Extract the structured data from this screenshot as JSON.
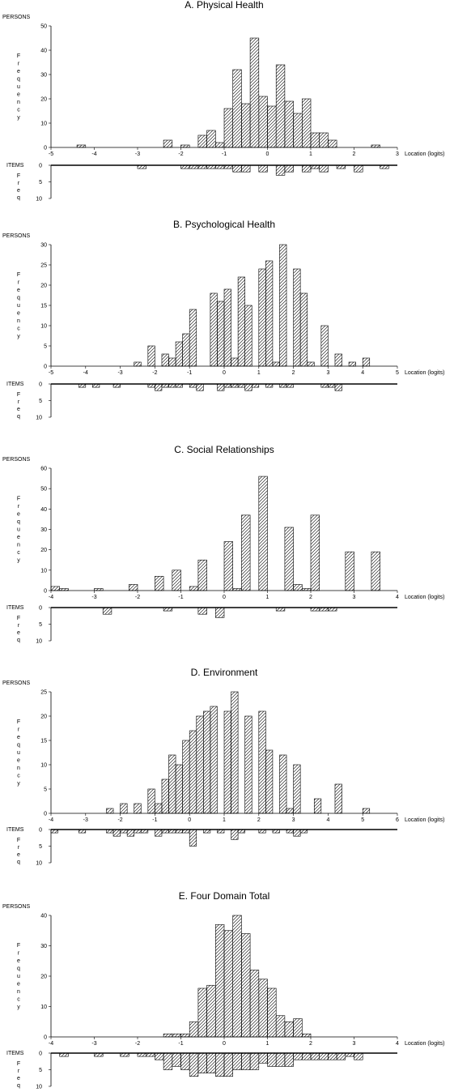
{
  "chart_data": [
    {
      "type": "bar",
      "title": "A. Physical Health",
      "persons_label": "PERSONS",
      "items_label": "ITEMS",
      "ylabel": "Frequency",
      "items_ylabel": "Freq",
      "xlabel": "Location (logits)",
      "xlim": [
        -5,
        3
      ],
      "x_ticks": [
        -5,
        -4,
        -3,
        -2,
        -1,
        0,
        1,
        2,
        3
      ],
      "ylim": [
        0,
        50
      ],
      "y_ticks": [
        0,
        10,
        20,
        30,
        40,
        50
      ],
      "items_ylim": [
        0,
        10
      ],
      "items_y_ticks": [
        0,
        5,
        10
      ],
      "bar_width": 0.2,
      "persons": {
        "x": [
          -4.3,
          -2.3,
          -1.9,
          -1.5,
          -1.3,
          -1.1,
          -0.9,
          -0.7,
          -0.5,
          -0.3,
          -0.1,
          0.1,
          0.3,
          0.5,
          0.7,
          0.9,
          1.1,
          1.3,
          1.5,
          2.5
        ],
        "values": [
          1,
          3,
          1,
          5,
          7,
          2,
          16,
          32,
          18,
          45,
          21,
          17,
          34,
          19,
          14,
          20,
          6,
          6,
          3,
          1
        ]
      },
      "items": {
        "x": [
          -2.9,
          -1.9,
          -1.7,
          -1.5,
          -1.3,
          -1.1,
          -0.9,
          -0.7,
          -0.5,
          -0.1,
          0.3,
          0.5,
          0.9,
          1.1,
          1.3,
          1.7,
          2.1,
          2.7
        ],
        "values": [
          1,
          1,
          1,
          1,
          1,
          1,
          1,
          2,
          2,
          2,
          3,
          2,
          2,
          1,
          2,
          1,
          2,
          1
        ]
      }
    },
    {
      "type": "bar",
      "title": "B. Psychological Health",
      "persons_label": "PERSONS",
      "items_label": "ITEMS",
      "ylabel": "Frequency",
      "items_ylabel": "Freq",
      "xlabel": "Location (logits)",
      "xlim": [
        -5,
        5
      ],
      "x_ticks": [
        -5,
        -4,
        -3,
        -2,
        -1,
        0,
        1,
        2,
        3,
        4,
        5
      ],
      "ylim": [
        0,
        30
      ],
      "y_ticks": [
        0,
        5,
        10,
        15,
        20,
        25,
        30
      ],
      "items_ylim": [
        0,
        10
      ],
      "items_y_ticks": [
        0,
        5,
        10
      ],
      "bar_width": 0.2,
      "persons": {
        "x": [
          -2.5,
          -2.1,
          -1.7,
          -1.5,
          -1.3,
          -1.1,
          -0.9,
          -0.7,
          -0.3,
          -0.1,
          0.1,
          0.3,
          0.5,
          0.7,
          1.1,
          1.3,
          1.5,
          1.7,
          1.9,
          2.1,
          2.3,
          2.5,
          2.9,
          3.3,
          3.7,
          4.1
        ],
        "values": [
          1,
          5,
          3,
          2,
          6,
          8,
          14,
          0,
          18,
          16,
          19,
          2,
          22,
          15,
          24,
          26,
          1,
          30,
          0,
          24,
          18,
          1,
          10,
          3,
          1,
          2
        ]
      },
      "items": {
        "x": [
          -4.1,
          -3.7,
          -3.1,
          -2.1,
          -1.9,
          -1.7,
          -1.5,
          -1.3,
          -0.9,
          -0.7,
          -0.1,
          0.1,
          0.3,
          0.5,
          0.7,
          0.9,
          1.3,
          1.7,
          1.9,
          2.9,
          3.1,
          3.3
        ],
        "values": [
          1,
          1,
          1,
          1,
          2,
          1,
          1,
          1,
          1,
          2,
          2,
          1,
          1,
          1,
          2,
          1,
          1,
          1,
          1,
          1,
          1,
          2
        ]
      }
    },
    {
      "type": "bar",
      "title": "C. Social Relationships",
      "persons_label": "PERSONS",
      "items_label": "ITEMS",
      "ylabel": "Frequency",
      "items_ylabel": "Freq",
      "xlabel": "Location (logits)",
      "xlim": [
        -4,
        4
      ],
      "x_ticks": [
        -4,
        -3,
        -2,
        -1,
        0,
        1,
        2,
        3,
        4
      ],
      "ylim": [
        0,
        60
      ],
      "y_ticks": [
        0,
        10,
        20,
        30,
        40,
        50,
        60
      ],
      "items_ylim": [
        0,
        10
      ],
      "items_y_ticks": [
        0,
        5,
        10
      ],
      "bar_width": 0.2,
      "persons": {
        "x": [
          -3.9,
          -3.7,
          -2.9,
          -2.1,
          -1.5,
          -1.1,
          -0.7,
          -0.5,
          0.1,
          0.3,
          0.5,
          0.9,
          1.5,
          1.7,
          1.9,
          2.1,
          2.9,
          3.5
        ],
        "values": [
          2,
          1,
          1,
          3,
          7,
          10,
          2,
          15,
          24,
          1,
          37,
          56,
          31,
          3,
          1,
          37,
          19,
          19
        ]
      },
      "items": {
        "x": [
          -2.7,
          -1.3,
          -0.5,
          -0.1,
          1.3,
          2.1,
          2.3,
          2.5
        ],
        "values": [
          2,
          1,
          2,
          3,
          1,
          1,
          1,
          1
        ]
      }
    },
    {
      "type": "bar",
      "title": "D. Environment",
      "persons_label": "PERSONS",
      "items_label": "ITEMS",
      "ylabel": "Frequency",
      "items_ylabel": "Freq",
      "xlabel": "Location (logits)",
      "xlim": [
        -4,
        6
      ],
      "x_ticks": [
        -4,
        -3,
        -2,
        -1,
        0,
        1,
        2,
        3,
        4,
        5,
        6
      ],
      "ylim": [
        0,
        25
      ],
      "y_ticks": [
        0,
        5,
        10,
        15,
        20,
        25
      ],
      "items_ylim": [
        0,
        10
      ],
      "items_y_ticks": [
        0,
        5,
        10
      ],
      "bar_width": 0.2,
      "persons": {
        "x": [
          -2.3,
          -1.9,
          -1.5,
          -1.1,
          -0.9,
          -0.7,
          -0.5,
          -0.3,
          -0.1,
          0.1,
          0.3,
          0.5,
          0.7,
          0.9,
          1.1,
          1.3,
          1.5,
          1.7,
          2.1,
          2.3,
          2.7,
          2.9,
          3.1,
          3.7,
          4.3,
          5.1
        ],
        "values": [
          1,
          2,
          2,
          5,
          2,
          7,
          12,
          10,
          15,
          17,
          20,
          21,
          22,
          0,
          21,
          25,
          0,
          20,
          21,
          13,
          12,
          1,
          10,
          3,
          6,
          1
        ]
      },
      "items": {
        "x": [
          -3.9,
          -3.1,
          -2.3,
          -2.1,
          -1.9,
          -1.7,
          -1.5,
          -1.3,
          -0.9,
          -0.7,
          -0.5,
          -0.3,
          -0.1,
          0.1,
          0.5,
          0.9,
          1.3,
          1.5,
          2.1,
          2.5,
          2.9,
          3.1,
          3.3
        ],
        "values": [
          1,
          1,
          1,
          2,
          1,
          2,
          1,
          1,
          2,
          1,
          1,
          1,
          1,
          5,
          1,
          1,
          3,
          1,
          1,
          1,
          1,
          2,
          1
        ]
      }
    },
    {
      "type": "bar",
      "title": "E. Four Domain Total",
      "persons_label": "PERSONS",
      "items_label": "ITEMS",
      "ylabel": "Frequency",
      "items_ylabel": "Freq",
      "xlabel": "Location (logits)",
      "xlim": [
        -4,
        4
      ],
      "x_ticks": [
        -4,
        -3,
        -2,
        -1,
        0,
        1,
        2,
        3,
        4
      ],
      "ylim": [
        0,
        40
      ],
      "y_ticks": [
        0,
        10,
        20,
        30,
        40
      ],
      "items_ylim": [
        0,
        10
      ],
      "items_y_ticks": [
        0,
        5,
        10
      ],
      "bar_width": 0.2,
      "persons": {
        "x": [
          -1.3,
          -1.1,
          -0.9,
          -0.7,
          -0.5,
          -0.3,
          -0.1,
          0.1,
          0.3,
          0.5,
          0.7,
          0.9,
          1.1,
          1.3,
          1.5,
          1.7,
          1.9
        ],
        "values": [
          1,
          1,
          1,
          5,
          16,
          17,
          37,
          35,
          40,
          34,
          22,
          19,
          16,
          7,
          5,
          6,
          1
        ]
      },
      "items": {
        "x": [
          -3.7,
          -2.9,
          -2.3,
          -1.9,
          -1.7,
          -1.5,
          -1.3,
          -1.1,
          -0.9,
          -0.7,
          -0.5,
          -0.3,
          -0.1,
          0.1,
          0.3,
          0.5,
          0.7,
          0.9,
          1.1,
          1.3,
          1.5,
          1.7,
          1.9,
          2.1,
          2.3,
          2.5,
          2.7,
          2.9,
          3.1
        ],
        "values": [
          1,
          1,
          1,
          1,
          1,
          2,
          5,
          4,
          5,
          7,
          6,
          6,
          7,
          7,
          5,
          5,
          5,
          3,
          4,
          4,
          4,
          2,
          2,
          2,
          2,
          2,
          2,
          1,
          2
        ]
      }
    }
  ]
}
